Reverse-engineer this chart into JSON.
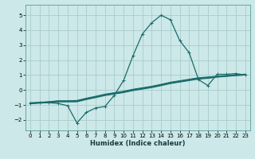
{
  "title": "",
  "xlabel": "Humidex (Indice chaleur)",
  "xlim": [
    -0.5,
    23.5
  ],
  "ylim": [
    -2.7,
    5.7
  ],
  "yticks": [
    -2,
    -1,
    0,
    1,
    2,
    3,
    4,
    5
  ],
  "xticks": [
    0,
    1,
    2,
    3,
    4,
    5,
    6,
    7,
    8,
    9,
    10,
    11,
    12,
    13,
    14,
    15,
    16,
    17,
    18,
    19,
    20,
    21,
    22,
    23
  ],
  "background_color": "#cce8e8",
  "grid_color": "#aacccc",
  "line_color": "#1a6b6b",
  "lines": [
    {
      "y": [
        -0.9,
        -0.85,
        -0.85,
        -0.9,
        -1.05,
        -2.2,
        -1.5,
        -1.2,
        -1.1,
        -0.35,
        0.65,
        2.3,
        3.75,
        4.5,
        5.0,
        4.7,
        3.3,
        2.5,
        0.7,
        0.3,
        1.05,
        1.05,
        1.1,
        1.0
      ],
      "marker": true
    },
    {
      "y": [
        -0.85,
        -0.82,
        -0.78,
        -0.72,
        -0.72,
        -0.7,
        -0.55,
        -0.42,
        -0.28,
        -0.18,
        -0.08,
        0.05,
        0.15,
        0.25,
        0.38,
        0.52,
        0.62,
        0.72,
        0.82,
        0.87,
        0.92,
        0.97,
        1.02,
        1.06
      ],
      "marker": false
    },
    {
      "y": [
        -0.88,
        -0.84,
        -0.8,
        -0.74,
        -0.74,
        -0.73,
        -0.58,
        -0.45,
        -0.31,
        -0.21,
        -0.11,
        0.02,
        0.12,
        0.22,
        0.35,
        0.49,
        0.59,
        0.69,
        0.79,
        0.84,
        0.9,
        0.95,
        1.0,
        1.04
      ],
      "marker": false
    },
    {
      "y": [
        -0.9,
        -0.86,
        -0.83,
        -0.77,
        -0.77,
        -0.76,
        -0.61,
        -0.48,
        -0.34,
        -0.24,
        -0.14,
        -0.01,
        0.09,
        0.19,
        0.32,
        0.46,
        0.56,
        0.66,
        0.76,
        0.81,
        0.88,
        0.93,
        0.98,
        1.02
      ],
      "marker": false
    },
    {
      "y": [
        -0.92,
        -0.88,
        -0.85,
        -0.79,
        -0.79,
        -0.79,
        -0.64,
        -0.51,
        -0.37,
        -0.27,
        -0.17,
        -0.04,
        0.06,
        0.16,
        0.29,
        0.43,
        0.53,
        0.63,
        0.73,
        0.78,
        0.86,
        0.91,
        0.96,
        1.0
      ],
      "marker": false
    }
  ]
}
